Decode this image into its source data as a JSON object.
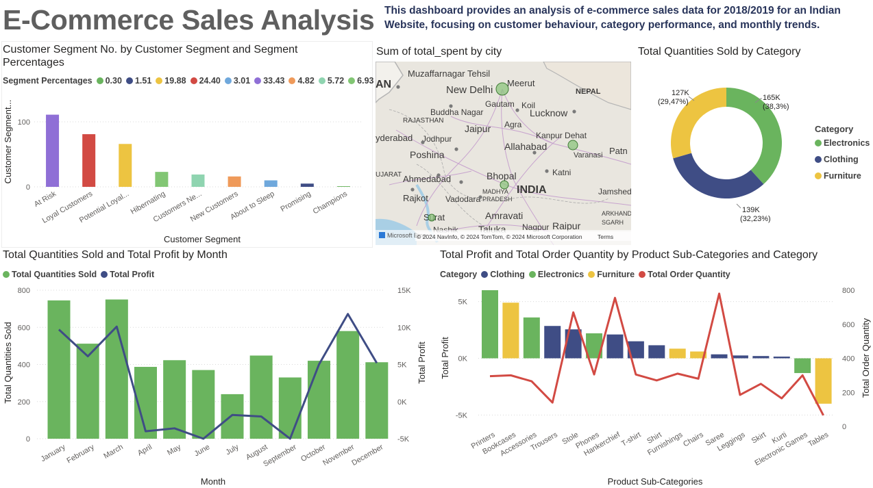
{
  "header": {
    "title": "E-Commerce Sales Analysis",
    "description": "This dashboard provides an analysis of e-commerce sales data for 2018/2019 for an Indian Website, focusing on customer behaviour, category performance, and monthly trends."
  },
  "chart_data": [
    {
      "id": "segment",
      "type": "bar",
      "title": "Customer Segment No. by Customer Segment and Segment Percentages",
      "xlabel": "Customer Segment",
      "ylabel": "Customer Segment...",
      "legend_title": "Segment Percentages",
      "legend": [
        {
          "label": "0.30",
          "color": "#6ab45e"
        },
        {
          "label": "1.51",
          "color": "#3f4d85"
        },
        {
          "label": "19.88",
          "color": "#edc441"
        },
        {
          "label": "24.40",
          "color": "#d24a43"
        },
        {
          "label": "3.01",
          "color": "#6fa8dc"
        },
        {
          "label": "33.43",
          "color": "#8f6fd6"
        },
        {
          "label": "4.82",
          "color": "#ef9a5a"
        },
        {
          "label": "5.72",
          "color": "#8fd4b0"
        },
        {
          "label": "6.93",
          "color": "#82c674"
        }
      ],
      "categories": [
        "At Risk",
        "Loyal Customers",
        "Potential Loyal...",
        "Hibernating",
        "Customers Ne...",
        "New Customers",
        "About to Sleep",
        "Promising",
        "Champions"
      ],
      "values": [
        111,
        81,
        66,
        23,
        19,
        16,
        10,
        5,
        1
      ],
      "colors": [
        "#8f6fd6",
        "#d24a43",
        "#edc441",
        "#82c674",
        "#8fd4b0",
        "#ef9a5a",
        "#6fa8dc",
        "#3f4d85",
        "#6ab45e"
      ],
      "ylim": [
        0,
        140
      ],
      "yticks": [
        0,
        100
      ],
      "grid": true
    },
    {
      "id": "category",
      "type": "pie",
      "title": "Total Quantities Sold by Category",
      "legend_title": "Category",
      "categories": [
        "Electronics",
        "Clothing",
        "Furniture"
      ],
      "values": [
        165000,
        139000,
        127000
      ],
      "percent": [
        38.3,
        32.23,
        29.47
      ],
      "labels": [
        [
          "165K",
          "(38,3%)"
        ],
        [
          "139K",
          "(32,23%)"
        ],
        [
          "127K",
          "(29,47%)"
        ]
      ],
      "colors": [
        "#6ab45e",
        "#3f4d85",
        "#edc441"
      ]
    },
    {
      "id": "monthly",
      "type": "bar",
      "title": "Total Quantities Sold and Total Profit by Month",
      "xlabel": "Month",
      "ylabel": "Total Quantities Sold",
      "y2label": "Total Profit",
      "categories": [
        "January",
        "February",
        "March",
        "April",
        "May",
        "June",
        "July",
        "August",
        "September",
        "October",
        "November",
        "December"
      ],
      "series": [
        {
          "name": "Total Quantities Sold",
          "type": "bar",
          "color": "#6ab45e",
          "values": [
            745,
            512,
            750,
            387,
            423,
            370,
            240,
            448,
            330,
            420,
            580,
            412
          ]
        },
        {
          "name": "Total Profit",
          "type": "line",
          "color": "#3f4d85",
          "values": [
            9700,
            6100,
            10100,
            -4000,
            -3600,
            -5000,
            -1800,
            -2000,
            -5000,
            5000,
            11800,
            5200
          ]
        }
      ],
      "ylim": [
        0,
        800
      ],
      "yticks": [
        0,
        200,
        400,
        600,
        800
      ],
      "y2lim": [
        -5000,
        15000
      ],
      "y2ticks": [
        "-5K",
        "0K",
        "5K",
        "10K",
        "15K"
      ],
      "y2tickvalues": [
        -5000,
        0,
        5000,
        10000,
        15000
      ],
      "grid": true
    },
    {
      "id": "subcat",
      "type": "bar",
      "title": "Total Profit and Total Order Quantity by Product Sub-Categories and Category",
      "xlabel": "Product Sub-Categories",
      "ylabel": "Total Profit",
      "y2label": "Total Order Quantity",
      "legend_title": "Category",
      "legend": [
        {
          "label": "Clothing",
          "color": "#3f4d85"
        },
        {
          "label": "Electronics",
          "color": "#6ab45e"
        },
        {
          "label": "Furniture",
          "color": "#edc441"
        },
        {
          "label": "Total Order Quantity",
          "color": "#d24a43"
        }
      ],
      "categories": [
        "Printers",
        "Bookcases",
        "Accessories",
        "Trousers",
        "Stole",
        "Phones",
        "Hankerchief",
        "T-shirt",
        "Shirt",
        "Furnishings",
        "Chairs",
        "Saree",
        "Leggings",
        "Skirt",
        "Kurti",
        "Electronic Games",
        "Tables"
      ],
      "profit": [
        6000,
        4900,
        3600,
        2850,
        2550,
        2200,
        2100,
        1500,
        1150,
        850,
        600,
        350,
        250,
        200,
        150,
        -1300,
        -4000
      ],
      "bar_category": [
        "Electronics",
        "Furniture",
        "Electronics",
        "Clothing",
        "Clothing",
        "Electronics",
        "Clothing",
        "Clothing",
        "Clothing",
        "Furniture",
        "Furniture",
        "Clothing",
        "Clothing",
        "Clothing",
        "Clothing",
        "Electronics",
        "Furniture"
      ],
      "order_quantity": [
        295,
        300,
        265,
        140,
        670,
        305,
        755,
        305,
        270,
        310,
        280,
        780,
        185,
        250,
        165,
        300,
        65
      ],
      "ylim": [
        -6000,
        6000
      ],
      "yticks": [
        "-5K",
        "0K",
        "5K"
      ],
      "ytickvalues": [
        -5000,
        0,
        5000
      ],
      "y2lim": [
        0,
        800
      ],
      "y2ticks": [
        0,
        200,
        400,
        600,
        800
      ],
      "grid": true
    }
  ],
  "map": {
    "title": "Sum of total_spent by city",
    "labels": [
      {
        "text": "Muzaffarnagar Tehsil",
        "size": 13
      },
      {
        "text": "Meerut",
        "size": 13
      },
      {
        "text": "NEPAL",
        "size": 11,
        "bold": true
      },
      {
        "text": "New Delhi",
        "size": 15
      },
      {
        "text": "Gautam",
        "size": 12
      },
      {
        "text": "Koil",
        "size": 12
      },
      {
        "text": "Buddha Nagar",
        "size": 12
      },
      {
        "text": "Lucknow",
        "size": 14
      },
      {
        "text": "RAJASTHAN",
        "size": 10
      },
      {
        "text": "Agra",
        "size": 12
      },
      {
        "text": "Jaipur",
        "size": 14
      },
      {
        "text": "Kanpur Dehat",
        "size": 12
      },
      {
        "text": "Jodhpur",
        "size": 12
      },
      {
        "text": "Allahabad",
        "size": 14
      },
      {
        "text": "Varanasi",
        "size": 11
      },
      {
        "text": "Patn",
        "size": 13
      },
      {
        "text": "Poshina",
        "size": 14
      },
      {
        "text": "Ahmedabad",
        "size": 13
      },
      {
        "text": "Bhopal",
        "size": 14
      },
      {
        "text": "INDIA",
        "size": 16,
        "bold": true
      },
      {
        "text": "Katni",
        "size": 12
      },
      {
        "text": "MADHYA",
        "size": 9
      },
      {
        "text": "PRADESH",
        "size": 9
      },
      {
        "text": "Rajkot",
        "size": 13
      },
      {
        "text": "Vadodara",
        "size": 12
      },
      {
        "text": "Jamshedp",
        "size": 12
      },
      {
        "text": "Surat",
        "size": 13
      },
      {
        "text": "Amravati",
        "size": 14
      },
      {
        "text": "Nashik",
        "size": 12
      },
      {
        "text": "Taluka",
        "size": 14
      },
      {
        "text": "Nagpur",
        "size": 12
      },
      {
        "text": "Raipur",
        "size": 14
      },
      {
        "text": "AN",
        "size": 16,
        "bold": true
      },
      {
        "text": "yderabad",
        "size": 13
      },
      {
        "text": "UJARAT",
        "size": 10
      },
      {
        "text": "ARKHAND",
        "size": 9
      },
      {
        "text": "SGARH",
        "size": 9
      }
    ],
    "attribution": "© 2024 NavInfo, © 2024 TomTom, © 2024 Microsoft Corporation",
    "terms": "Terms",
    "logo": "Microsoft Bing"
  }
}
